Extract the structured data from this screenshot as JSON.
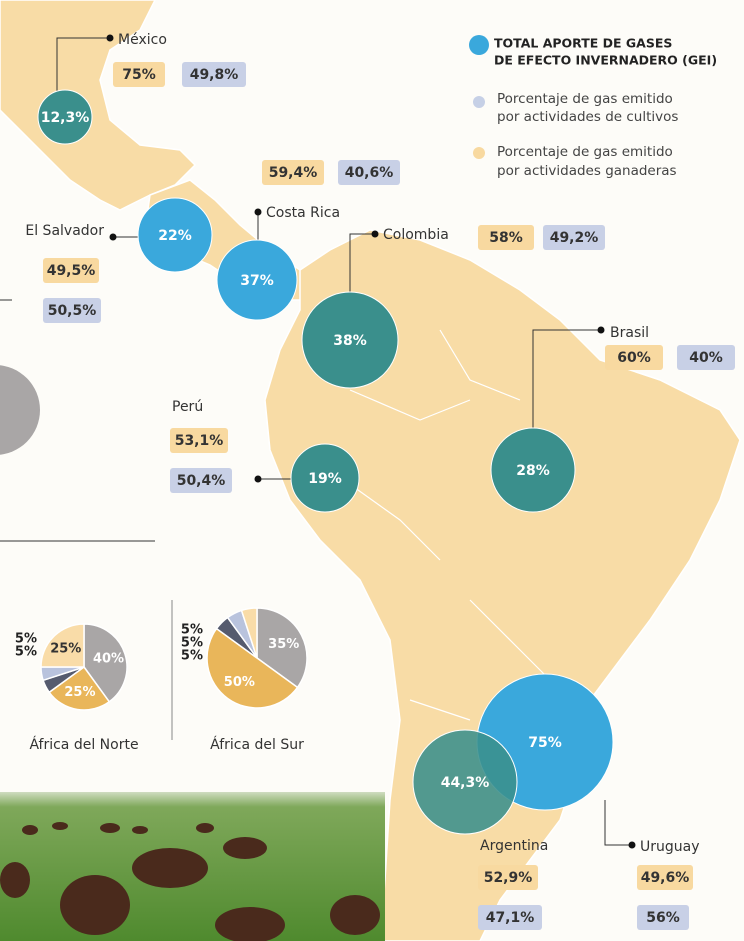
{
  "legend": {
    "total": [
      "TOTAL APORTE DE GASES",
      "DE EFECTO INVERNADERO (GEI)"
    ],
    "crops": [
      "Porcentaje de gas emitido",
      "por actividades de cultivos"
    ],
    "livestock": [
      "Porcentaje de gas emitido",
      "por actividades ganaderas"
    ]
  },
  "countries": [
    {
      "name": "México",
      "total": "12,3%",
      "livestock": "75%",
      "crops": "49,8%"
    },
    {
      "name": "El Salvador",
      "total": "22%",
      "livestock": "49,5%",
      "crops": "50,5%"
    },
    {
      "name": "Costa Rica",
      "total": "37%",
      "livestock": "59,4%",
      "crops": "40,6%"
    },
    {
      "name": "Colombia",
      "total": "38%",
      "livestock": "58%",
      "crops": "49,2%"
    },
    {
      "name": "Brasil",
      "total": "28%",
      "livestock": "60%",
      "crops": "40%"
    },
    {
      "name": "Perú",
      "total": "19%",
      "livestock": "53,1%",
      "crops": "50,4%"
    },
    {
      "name": "Argentina",
      "total": "44,3%",
      "livestock": "52,9%",
      "crops": "47,1%"
    },
    {
      "name": "Uruguay",
      "total": "75%",
      "livestock": "49,6%",
      "crops": "56%"
    }
  ],
  "pies": [
    {
      "name": "África del Norte",
      "slices": [
        {
          "value": 40,
          "label": "40%",
          "color": "#a9a6a6"
        },
        {
          "value": 25,
          "label": "25%",
          "color": "#e9b65a"
        },
        {
          "value": 5,
          "label": "5%",
          "color": "#555b6e"
        },
        {
          "value": 5,
          "label": "5%",
          "color": "#b9c3dd"
        },
        {
          "value": 25,
          "label": "25%",
          "color": "#f9dca8"
        }
      ]
    },
    {
      "name": "África del Sur",
      "slices": [
        {
          "value": 35,
          "label": "35%",
          "color": "#a9a6a6"
        },
        {
          "value": 50,
          "label": "50%",
          "color": "#e9b65a"
        },
        {
          "value": 5,
          "label": "5%",
          "color": "#555b6e"
        },
        {
          "value": 5,
          "label": "5%",
          "color": "#b9c3dd"
        },
        {
          "value": 5,
          "label": "5%",
          "color": "#f9dca8"
        }
      ]
    }
  ]
}
